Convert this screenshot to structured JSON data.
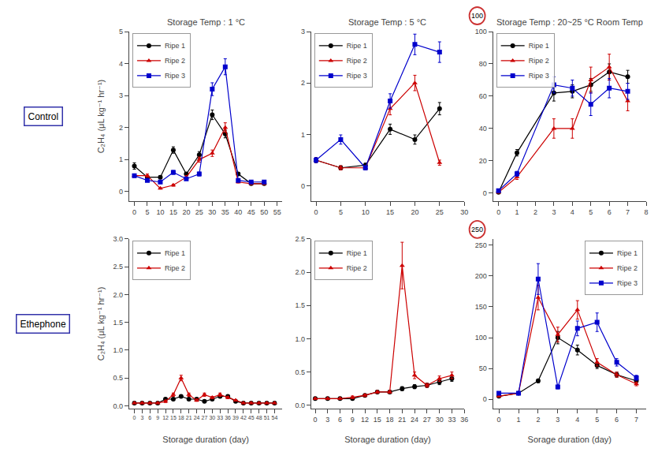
{
  "chart_data": [
    {
      "type": "line",
      "title": "Storage Temp : 1 °C",
      "ylabel": "C₂H₄ (μL kg⁻¹ hr⁻¹)",
      "xlim": [
        -2,
        57
      ],
      "xticks": [
        0,
        5,
        10,
        15,
        20,
        25,
        30,
        35,
        40,
        45,
        50,
        55
      ],
      "ylim": [
        -0.3,
        5
      ],
      "yticks": [
        0,
        1,
        2,
        3,
        4,
        5
      ],
      "grid": false,
      "legend": "upper left",
      "annotations": [
        {
          "text": "Control",
          "color": "#3333aa"
        }
      ],
      "series": [
        {
          "name": "Ripe 1",
          "color": "#000000",
          "marker": "circle",
          "x": [
            0,
            5,
            10,
            15,
            20,
            25,
            30,
            35,
            40,
            45,
            50
          ],
          "values": [
            0.8,
            0.45,
            0.45,
            1.3,
            0.55,
            1.15,
            2.4,
            1.8,
            0.55,
            0.25,
            0.25
          ],
          "errors": [
            0.1,
            0.05,
            0.05,
            0.1,
            0.05,
            0.1,
            0.15,
            0.12,
            0.05,
            0.03,
            0.03
          ]
        },
        {
          "name": "Ripe 2",
          "color": "#cc0000",
          "marker": "triangle",
          "x": [
            0,
            5,
            10,
            15,
            20,
            25,
            30,
            35,
            40,
            45,
            50
          ],
          "values": [
            0.5,
            0.5,
            0.1,
            0.2,
            0.45,
            1.0,
            1.2,
            2.0,
            0.3,
            0.25,
            0.25
          ],
          "errors": [
            0.05,
            0.05,
            0.02,
            0.03,
            0.05,
            0.08,
            0.1,
            0.15,
            0.03,
            0.03,
            0.03
          ]
        },
        {
          "name": "Ripe 3",
          "color": "#0000cc",
          "marker": "square",
          "x": [
            0,
            5,
            10,
            15,
            20,
            25,
            30,
            35,
            40,
            45,
            50
          ],
          "values": [
            0.5,
            0.35,
            0.3,
            0.6,
            0.4,
            0.55,
            3.2,
            3.9,
            0.35,
            0.3,
            0.3
          ],
          "errors": [
            0.05,
            0.04,
            0.03,
            0.06,
            0.04,
            0.06,
            0.2,
            0.25,
            0.04,
            0.03,
            0.03
          ]
        }
      ]
    },
    {
      "type": "line",
      "title": "Storage Temp : 5 °C",
      "xlim": [
        -1,
        30
      ],
      "xticks": [
        0,
        5,
        10,
        15,
        20,
        25,
        30
      ],
      "ylim": [
        -0.3,
        3.0
      ],
      "yticks": [
        0,
        1,
        2,
        3
      ],
      "grid": false,
      "legend": "upper left",
      "series": [
        {
          "name": "Ripe 1",
          "color": "#000000",
          "marker": "circle",
          "x": [
            0,
            5,
            10,
            15,
            20,
            25
          ],
          "values": [
            0.5,
            0.35,
            0.4,
            1.1,
            0.9,
            1.5
          ],
          "errors": [
            0.05,
            0.04,
            0.04,
            0.1,
            0.09,
            0.12
          ]
        },
        {
          "name": "Ripe 2",
          "color": "#cc0000",
          "marker": "triangle",
          "x": [
            0,
            5,
            10,
            15,
            20,
            25
          ],
          "values": [
            0.5,
            0.35,
            0.35,
            1.5,
            2.0,
            0.45
          ],
          "errors": [
            0.05,
            0.04,
            0.04,
            0.12,
            0.15,
            0.05
          ]
        },
        {
          "name": "Ripe 3",
          "color": "#0000cc",
          "marker": "square",
          "x": [
            0,
            5,
            10,
            15,
            20,
            25
          ],
          "values": [
            0.5,
            0.9,
            0.35,
            1.65,
            2.75,
            2.6
          ],
          "errors": [
            0.05,
            0.09,
            0.04,
            0.14,
            0.2,
            0.2
          ]
        }
      ]
    },
    {
      "type": "line",
      "title": "Storage Temp : 20~25 °C Room Temp",
      "xlim": [
        -0.3,
        8
      ],
      "xticks": [
        0,
        1,
        2,
        3,
        4,
        5,
        6,
        7,
        8
      ],
      "ylim": [
        -5,
        100
      ],
      "yticks": [
        0,
        20,
        40,
        60,
        80,
        100
      ],
      "grid": false,
      "legend": "upper left",
      "annotations": [
        {
          "text": "100",
          "color": "#cc3333"
        }
      ],
      "series": [
        {
          "name": "Ripe 1",
          "color": "#000000",
          "marker": "circle",
          "x": [
            0,
            1,
            3,
            4,
            5,
            6,
            7
          ],
          "values": [
            0.5,
            25,
            62,
            63,
            67,
            75,
            72
          ],
          "errors": [
            0.5,
            2,
            5,
            4,
            4,
            5,
            4
          ]
        },
        {
          "name": "Ripe 2",
          "color": "#cc0000",
          "marker": "triangle",
          "x": [
            0,
            1,
            3,
            4,
            5,
            6,
            7
          ],
          "values": [
            0.5,
            10,
            40,
            40,
            70,
            78,
            57
          ],
          "errors": [
            0.5,
            1.5,
            6,
            6,
            8,
            8,
            6
          ]
        },
        {
          "name": "Ripe 3",
          "color": "#0000cc",
          "marker": "square",
          "x": [
            0,
            1,
            3,
            4,
            5,
            6,
            7
          ],
          "values": [
            1.5,
            12,
            67,
            65,
            55,
            65,
            63
          ],
          "errors": [
            0.3,
            1.5,
            5,
            5,
            7,
            6,
            5
          ]
        }
      ]
    },
    {
      "type": "line",
      "xlabel": "Storage duration (day)",
      "ylabel": "C₂H₄ (μL kg⁻¹ hr⁻¹)",
      "xlim": [
        -2,
        57
      ],
      "xticks": [
        0,
        3,
        6,
        9,
        12,
        15,
        18,
        21,
        24,
        27,
        30,
        33,
        36,
        39,
        42,
        45,
        48,
        51,
        54
      ],
      "ylim": [
        -0.05,
        3.0
      ],
      "yticks": [
        {
          "value": 0,
          "label": "0.0"
        },
        0.5,
        {
          "value": 1,
          "label": "1.0"
        },
        1.5,
        {
          "value": 2,
          "label": "2.0"
        },
        2.5,
        {
          "value": 3,
          "label": "3.0"
        }
      ],
      "grid": false,
      "legend": "upper left",
      "annotations": [
        {
          "text": "Ethephone",
          "color": "#3333aa"
        }
      ],
      "series": [
        {
          "name": "Ripe 1",
          "color": "#000000",
          "marker": "circle",
          "x": [
            0,
            3,
            6,
            9,
            12,
            15,
            18,
            21,
            24,
            27,
            30,
            33,
            36,
            39,
            42,
            45,
            48,
            51,
            54
          ],
          "values": [
            0.05,
            0.05,
            0.05,
            0.05,
            0.12,
            0.12,
            0.17,
            0.12,
            0.12,
            0.08,
            0.12,
            0.17,
            0.17,
            0.08,
            0.05,
            0.05,
            0.05,
            0.05,
            0.05
          ],
          "errors": [
            0.01,
            0.01,
            0.01,
            0.01,
            0.02,
            0.02,
            0.02,
            0.02,
            0.02,
            0.01,
            0.02,
            0.02,
            0.02,
            0.01,
            0.01,
            0.01,
            0.01,
            0.01,
            0.01
          ]
        },
        {
          "name": "Ripe 2",
          "color": "#cc0000",
          "marker": "triangle",
          "x": [
            0,
            3,
            6,
            9,
            12,
            15,
            18,
            21,
            24,
            27,
            30,
            33,
            36,
            39,
            42,
            45,
            48,
            51,
            54
          ],
          "values": [
            0.05,
            0.05,
            0.05,
            0.05,
            0.08,
            0.2,
            0.5,
            0.2,
            0.1,
            0.2,
            0.15,
            0.2,
            0.15,
            0.1,
            0.05,
            0.05,
            0.05,
            0.05,
            0.05
          ],
          "errors": [
            0.01,
            0.01,
            0.01,
            0.01,
            0.02,
            0.03,
            0.05,
            0.03,
            0.02,
            0.03,
            0.02,
            0.03,
            0.02,
            0.01,
            0.01,
            0.01,
            0.01,
            0.01,
            0.01
          ]
        }
      ]
    },
    {
      "type": "line",
      "xlabel": "Storage duration (day)",
      "xlim": [
        -1,
        36
      ],
      "xticks": [
        0,
        3,
        6,
        9,
        12,
        15,
        18,
        21,
        24,
        27,
        30,
        33,
        36
      ],
      "ylim": [
        -0.05,
        2.5
      ],
      "yticks": [
        {
          "value": 0,
          "label": "0.0"
        },
        0.5,
        {
          "value": 1,
          "label": "1.0"
        },
        1.5,
        {
          "value": 2,
          "label": "2.0"
        },
        2.5
      ],
      "grid": false,
      "legend": "upper left",
      "series": [
        {
          "name": "Ripe 1",
          "color": "#000000",
          "marker": "circle",
          "x": [
            0,
            3,
            6,
            9,
            12,
            15,
            18,
            21,
            24,
            27,
            30,
            33
          ],
          "values": [
            0.1,
            0.1,
            0.1,
            0.1,
            0.15,
            0.2,
            0.2,
            0.25,
            0.28,
            0.3,
            0.35,
            0.4
          ],
          "errors": [
            0.01,
            0.01,
            0.01,
            0.01,
            0.02,
            0.02,
            0.02,
            0.03,
            0.03,
            0.03,
            0.04,
            0.04
          ]
        },
        {
          "name": "Ripe 2",
          "color": "#cc0000",
          "marker": "triangle",
          "x": [
            0,
            3,
            6,
            9,
            12,
            15,
            18,
            21,
            24,
            27,
            30,
            33
          ],
          "values": [
            0.1,
            0.1,
            0.1,
            0.12,
            0.15,
            0.2,
            0.2,
            2.1,
            0.45,
            0.3,
            0.4,
            0.45
          ],
          "errors": [
            0.01,
            0.01,
            0.01,
            0.02,
            0.02,
            0.02,
            0.02,
            0.35,
            0.05,
            0.03,
            0.04,
            0.05
          ]
        }
      ]
    },
    {
      "type": "line",
      "xlabel": "Sorage duration (day)",
      "xlim": [
        -0.3,
        7.5
      ],
      "xticks": [
        0,
        1,
        2,
        3,
        4,
        5,
        6,
        7
      ],
      "ylim": [
        -15,
        260
      ],
      "yticks": [
        0,
        50,
        100,
        150,
        200,
        250
      ],
      "grid": false,
      "legend": "upper right",
      "annotations": [
        {
          "text": "250",
          "color": "#cc3333"
        }
      ],
      "series": [
        {
          "name": "Ripe 1",
          "color": "#000000",
          "marker": "circle",
          "x": [
            0,
            1,
            2,
            3,
            4,
            5,
            6,
            7
          ],
          "values": [
            5,
            10,
            30,
            100,
            80,
            55,
            40,
            30
          ],
          "errors": [
            1,
            1,
            3,
            10,
            8,
            5,
            4,
            3
          ]
        },
        {
          "name": "Ripe 2",
          "color": "#cc0000",
          "marker": "triangle",
          "x": [
            0,
            1,
            2,
            3,
            4,
            5,
            6,
            7
          ],
          "values": [
            5,
            10,
            165,
            105,
            145,
            60,
            40,
            25
          ],
          "errors": [
            1,
            1,
            20,
            12,
            15,
            6,
            4,
            3
          ]
        },
        {
          "name": "Ripe 3",
          "color": "#0000cc",
          "marker": "square",
          "x": [
            0,
            1,
            2,
            3,
            4,
            5,
            6,
            7
          ],
          "values": [
            10,
            10,
            195,
            20,
            115,
            125,
            60,
            35
          ],
          "errors": [
            1,
            1,
            25,
            3,
            12,
            15,
            6,
            4
          ]
        }
      ]
    }
  ]
}
